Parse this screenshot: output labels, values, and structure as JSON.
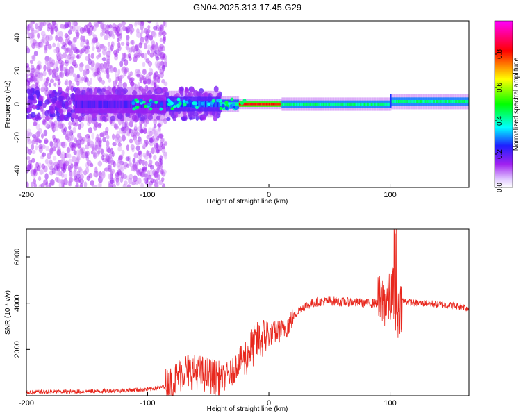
{
  "title": "GN04.2025.313.17.45.G29",
  "colors": {
    "line": "#e8281e",
    "colorbar": [
      "#ffffff",
      "#a020f0",
      "#1e1eff",
      "#00ffff",
      "#00ff00",
      "#ffff00",
      "#ff0000",
      "#ff00ff"
    ]
  },
  "chart_data": [
    {
      "type": "heatmap",
      "title": "GN04.2025.313.17.45.G29",
      "xlabel": "Height of straight line (km)",
      "ylabel": "Frequency (Hz)",
      "xlim": [
        -200,
        165
      ],
      "ylim": [
        -50,
        50
      ],
      "xticks": [
        -200,
        -100,
        0,
        100
      ],
      "yticks": [
        -40,
        -20,
        0,
        20,
        40
      ],
      "colorbar": {
        "label": "Normalized spectral amplitude",
        "range": [
          0,
          1
        ],
        "ticks": [
          "0.0",
          "0.2",
          "0.4",
          "0.6",
          "0.8"
        ]
      },
      "features": [
        {
          "name": "diffuse scatter",
          "x_range": [
            -200,
            -85
          ],
          "freq_range": [
            -50,
            50
          ],
          "amplitude": 0.1
        },
        {
          "name": "spectral ridge",
          "x_range": [
            -160,
            165
          ],
          "freq_center": 0,
          "amplitude_range": [
            0.3,
            1.0
          ]
        },
        {
          "name": "peak amplitude",
          "x_range": [
            -25,
            10
          ],
          "freq_center": 0,
          "amplitude": 0.9
        },
        {
          "name": "step",
          "x": 100,
          "freq_center": 2
        }
      ]
    },
    {
      "type": "line",
      "xlabel": "Height of straight line (km)",
      "ylabel": "SNR (10 * v/v)",
      "xlim": [
        -200,
        165
      ],
      "ylim": [
        0,
        7200
      ],
      "xticks": [
        -200,
        -100,
        0,
        100
      ],
      "yticks": [
        2000,
        4000,
        6000
      ],
      "series": [
        {
          "name": "SNR",
          "x": [
            -200,
            -180,
            -160,
            -140,
            -120,
            -100,
            -90,
            -80,
            -75,
            -70,
            -60,
            -50,
            -45,
            -40,
            -30,
            -25,
            -20,
            -15,
            -10,
            -5,
            0,
            5,
            10,
            15,
            20,
            25,
            30,
            40,
            50,
            60,
            70,
            80,
            90,
            95,
            100,
            103,
            106,
            110,
            120,
            130,
            140,
            150,
            160,
            165
          ],
          "values": [
            150,
            170,
            180,
            200,
            230,
            280,
            350,
            500,
            800,
            1100,
            1000,
            900,
            800,
            700,
            1000,
            1500,
            1600,
            2000,
            2300,
            2500,
            2600,
            2750,
            2800,
            3000,
            3400,
            3700,
            3900,
            4050,
            4100,
            4050,
            4050,
            4000,
            4000,
            4100,
            4200,
            4500,
            3500,
            4100,
            4000,
            4000,
            3950,
            3900,
            3850,
            3750
          ]
        }
      ]
    }
  ]
}
